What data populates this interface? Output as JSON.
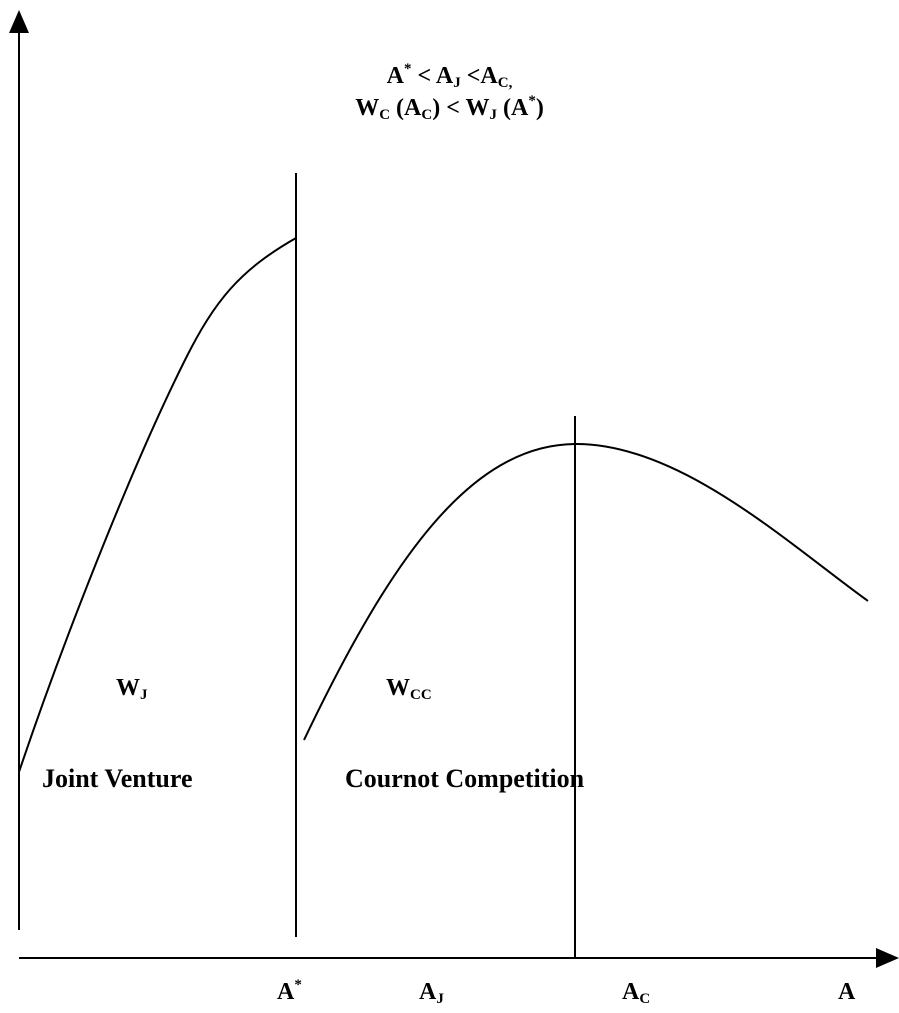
{
  "conditions": {
    "line1": {
      "a_star": "A",
      "a_star_sup": "*",
      "lt1": " < ",
      "aj": "A",
      "aj_sub": "J",
      "lt2": " <",
      "ac": "A",
      "ac_sub": "C,"
    },
    "line2": {
      "w": "W",
      "w_sub": "C",
      "open": " (",
      "a": "A",
      "a_sub": "C",
      "close": ")",
      "lt": " < ",
      "wj": "W",
      "wj_sub": "J",
      "open2": " (",
      "a2": "A",
      "a2_sup": "*",
      "close2": ")"
    }
  },
  "curves": {
    "joint_venture": {
      "label": "W",
      "label_sub": "J"
    },
    "cournot": {
      "label": "W",
      "label_sub": "CC"
    }
  },
  "regions": {
    "left": "Joint Venture",
    "right": "Cournot Competition"
  },
  "x_axis": {
    "a_star": {
      "main": "A",
      "sup": "*"
    },
    "a_j": {
      "main": "A",
      "sub": "J"
    },
    "a_c": {
      "main": "A",
      "sub": "C"
    },
    "a": {
      "main": "A"
    }
  }
}
